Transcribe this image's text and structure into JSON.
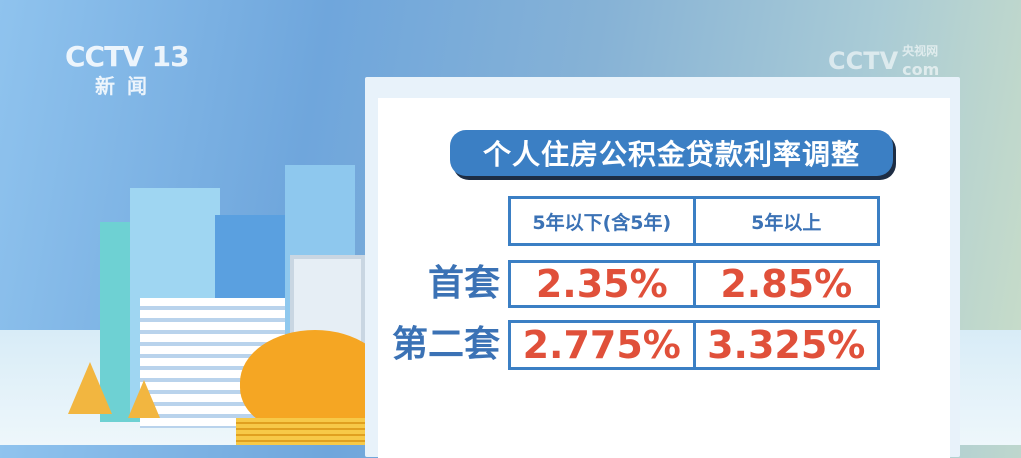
{
  "channel_logo": {
    "brand": "CCTV",
    "number": "13",
    "subtitle": "新闻"
  },
  "site_logo": {
    "brand": "CCTV",
    "cn": "央视网",
    "suffix": "com"
  },
  "title": "个人住房公积金贷款利率调整",
  "table": {
    "columns": [
      "5年以下(含5年)",
      "5年以上"
    ],
    "rows": [
      {
        "label": "首套",
        "values": [
          "2.35%",
          "2.85%"
        ]
      },
      {
        "label": "第二套",
        "values": [
          "2.775%",
          "3.325%"
        ]
      }
    ]
  },
  "colors": {
    "accent_blue": "#3b7fc4",
    "value_red": "#e0503a"
  }
}
